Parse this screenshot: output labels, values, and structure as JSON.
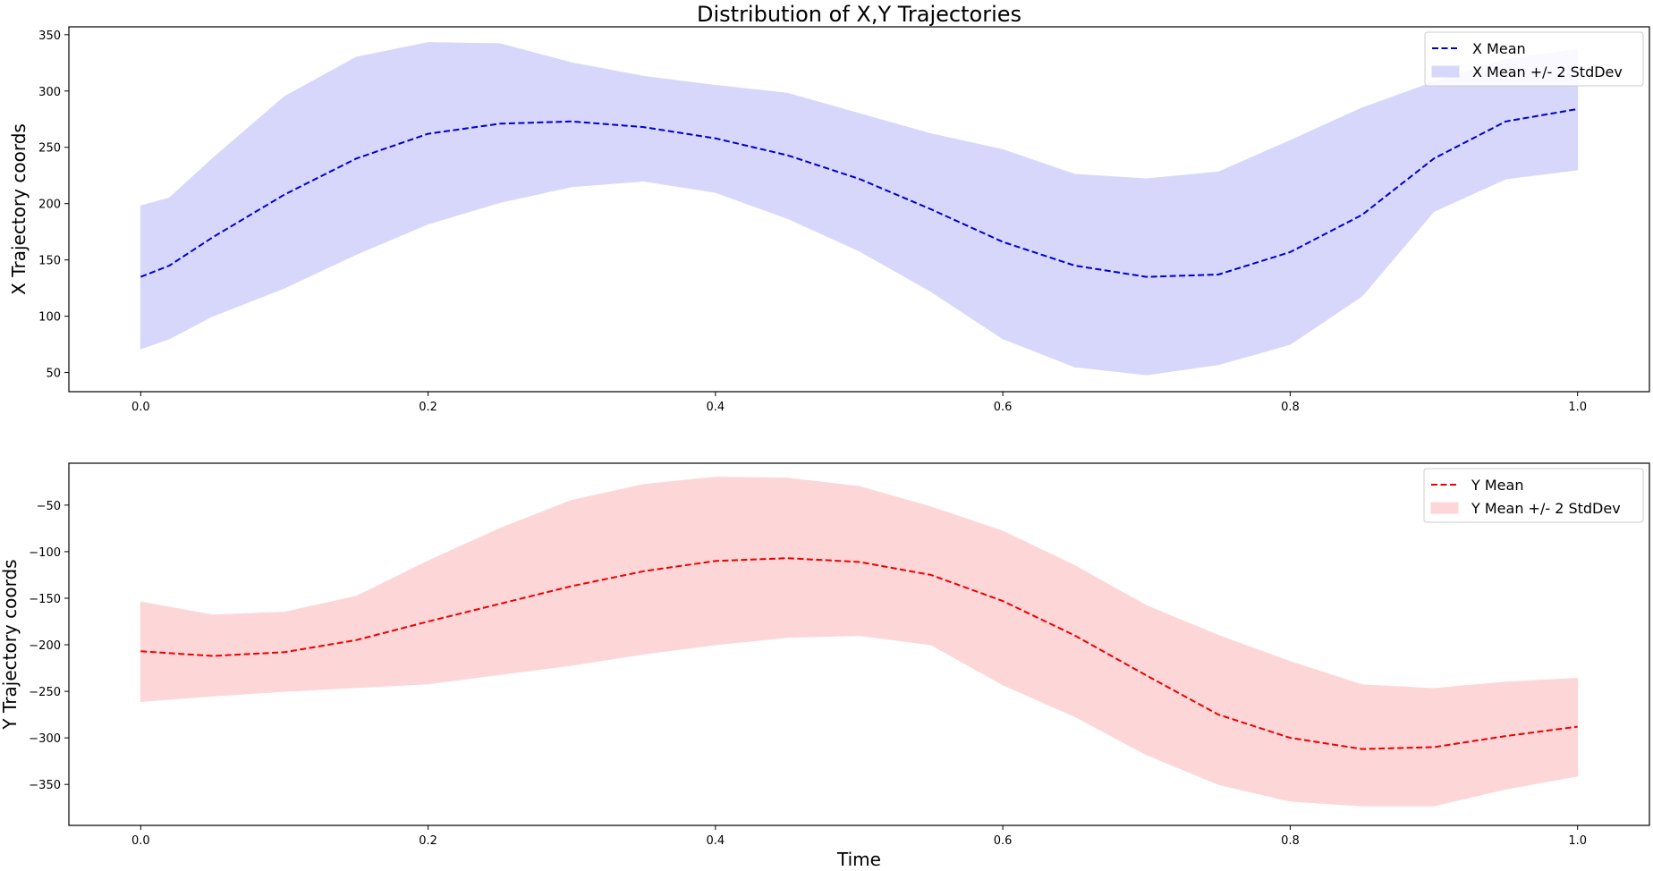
{
  "chart_data": [
    {
      "type": "line",
      "title": "Distribution of X,Y Trajectories",
      "xlabel": "",
      "ylabel": "X Trajectory coords",
      "xlim": [
        -0.05,
        1.05
      ],
      "ylim": [
        33,
        357
      ],
      "xticks": [
        0.0,
        0.2,
        0.4,
        0.6,
        0.8,
        1.0
      ],
      "xtick_labels": [
        "0.0",
        "0.2",
        "0.4",
        "0.6",
        "0.8",
        "1.0"
      ],
      "yticks": [
        50,
        100,
        150,
        200,
        250,
        300,
        350
      ],
      "ytick_labels": [
        "50",
        "100",
        "150",
        "200",
        "250",
        "300",
        "350"
      ],
      "grid": false,
      "legend_position": "top-right",
      "series": [
        {
          "name": "X Mean",
          "kind": "line",
          "style": "dashed",
          "color": "#0000cc",
          "x": [
            0.0,
            0.02,
            0.05,
            0.1,
            0.15,
            0.2,
            0.25,
            0.3,
            0.35,
            0.4,
            0.45,
            0.5,
            0.55,
            0.6,
            0.65,
            0.7,
            0.75,
            0.8,
            0.85,
            0.9,
            0.95,
            1.0
          ],
          "values": [
            135,
            145,
            170,
            208,
            240,
            262,
            271,
            273,
            268,
            258,
            243,
            222,
            195,
            166,
            145,
            135,
            137,
            157,
            190,
            240,
            273,
            284
          ]
        },
        {
          "name": "X Mean +/- 2 StdDev",
          "kind": "band",
          "color": "#d7d7fc",
          "x": [
            0.0,
            0.02,
            0.05,
            0.1,
            0.15,
            0.2,
            0.25,
            0.3,
            0.35,
            0.4,
            0.45,
            0.5,
            0.55,
            0.6,
            0.65,
            0.7,
            0.75,
            0.8,
            0.85,
            0.9,
            0.95,
            1.0
          ],
          "upper": [
            198,
            205,
            240,
            295,
            330,
            343,
            342,
            325,
            313,
            305,
            298,
            280,
            262,
            248,
            226,
            222,
            228,
            256,
            285,
            308,
            328,
            337
          ],
          "lower": [
            71,
            80,
            100,
            125,
            155,
            182,
            201,
            215,
            220,
            210,
            187,
            158,
            122,
            80,
            55,
            48,
            57,
            75,
            118,
            193,
            222,
            230
          ]
        }
      ]
    },
    {
      "type": "line",
      "title": "",
      "xlabel": "Time",
      "ylabel": "Y Trajectory coords",
      "xlim": [
        -0.05,
        1.05
      ],
      "ylim": [
        -394,
        -5
      ],
      "xticks": [
        0.0,
        0.2,
        0.4,
        0.6,
        0.8,
        1.0
      ],
      "xtick_labels": [
        "0.0",
        "0.2",
        "0.4",
        "0.6",
        "0.8",
        "1.0"
      ],
      "yticks": [
        -350,
        -300,
        -250,
        -200,
        -150,
        -100,
        -50
      ],
      "ytick_labels": [
        "−350",
        "−300",
        "−250",
        "−200",
        "−150",
        "−100",
        "−50"
      ],
      "grid": false,
      "legend_position": "top-right",
      "series": [
        {
          "name": "Y Mean",
          "kind": "line",
          "style": "dashed",
          "color": "#ee0000",
          "x": [
            0.0,
            0.05,
            0.1,
            0.15,
            0.2,
            0.25,
            0.3,
            0.35,
            0.4,
            0.45,
            0.5,
            0.55,
            0.6,
            0.65,
            0.7,
            0.75,
            0.8,
            0.85,
            0.9,
            0.95,
            1.0
          ],
          "values": [
            -207,
            -212,
            -208,
            -195,
            -175,
            -156,
            -137,
            -121,
            -110,
            -107,
            -111,
            -125,
            -153,
            -190,
            -233,
            -275,
            -300,
            -312,
            -310,
            -298,
            -288
          ]
        },
        {
          "name": "Y Mean +/- 2 StdDev",
          "kind": "band",
          "color": "#fdd6d8",
          "x": [
            0.0,
            0.05,
            0.1,
            0.15,
            0.2,
            0.25,
            0.3,
            0.35,
            0.4,
            0.45,
            0.5,
            0.55,
            0.6,
            0.65,
            0.7,
            0.75,
            0.8,
            0.85,
            0.9,
            0.95,
            1.0
          ],
          "upper": [
            -154,
            -168,
            -165,
            -148,
            -110,
            -75,
            -45,
            -28,
            -20,
            -21,
            -30,
            -52,
            -78,
            -115,
            -158,
            -190,
            -218,
            -243,
            -247,
            -240,
            -236
          ],
          "lower": [
            -261,
            -255,
            -250,
            -246,
            -242,
            -232,
            -222,
            -210,
            -200,
            -192,
            -190,
            -200,
            -243,
            -277,
            -318,
            -350,
            -368,
            -373,
            -373,
            -355,
            -341
          ]
        }
      ]
    }
  ]
}
